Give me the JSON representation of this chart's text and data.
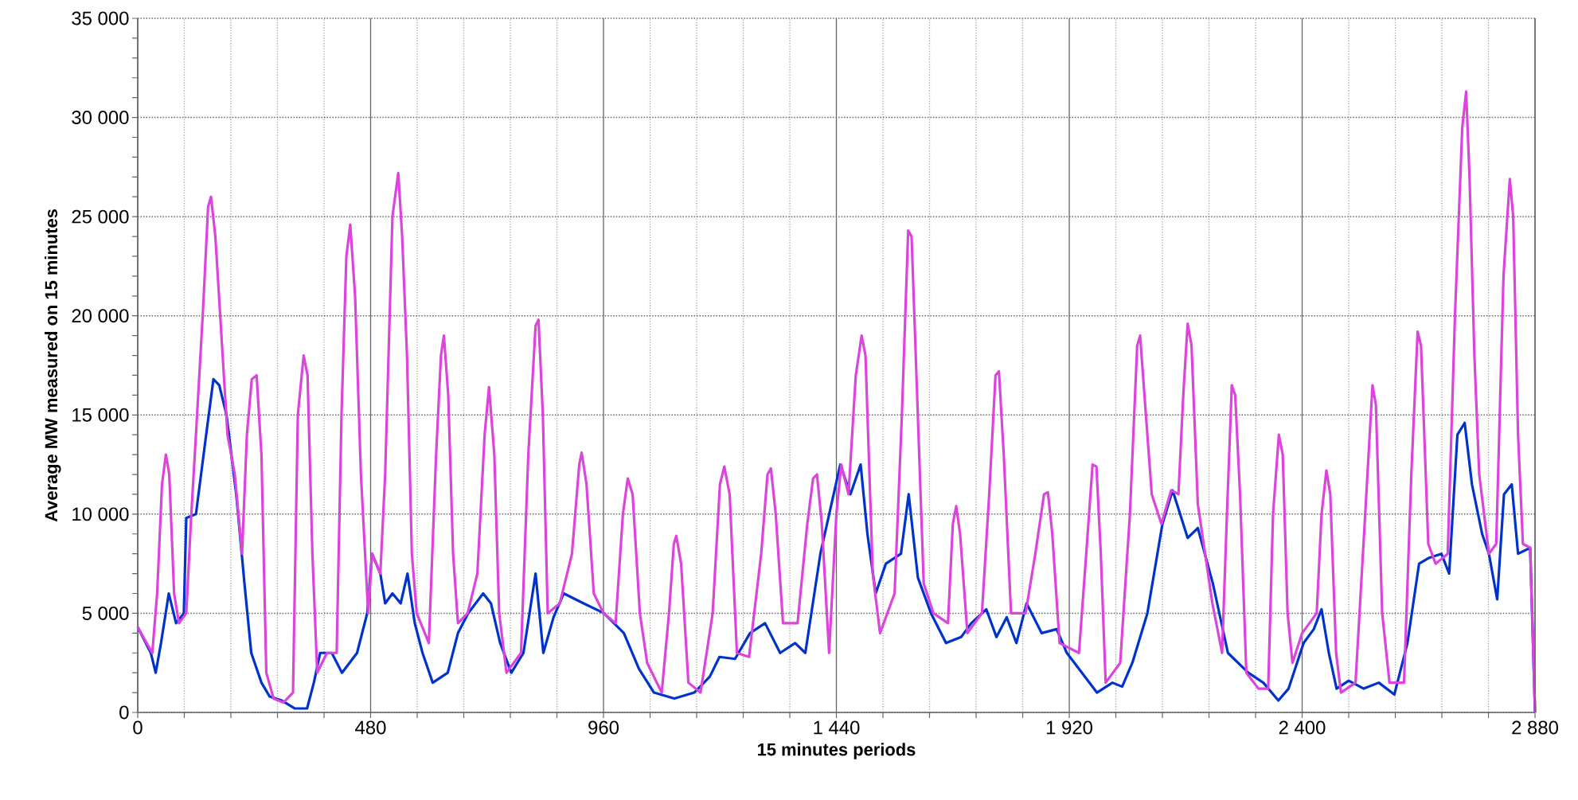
{
  "chart_data": {
    "type": "line",
    "xlabel": "**15 minutes periods**",
    "ylabel": "**Average MW measured on 15 minutes**",
    "grid": true,
    "marker": "none",
    "line_style": "solid",
    "xlim": [
      0,
      2880
    ],
    "ylim": [
      0,
      35000
    ],
    "xticks": [
      0,
      {
        "value": 96,
        "label": null
      },
      {
        "value": 192,
        "label": null
      },
      {
        "value": 288,
        "label": null
      },
      {
        "value": 384,
        "label": null
      },
      480,
      {
        "value": 576,
        "label": null
      },
      {
        "value": 672,
        "label": null
      },
      {
        "value": 768,
        "label": null
      },
      {
        "value": 864,
        "label": null
      },
      960,
      {
        "value": 1056,
        "label": null
      },
      {
        "value": 1152,
        "label": null
      },
      {
        "value": 1248,
        "label": null
      },
      {
        "value": 1344,
        "label": null
      },
      {
        "value": 1440,
        "label": "1 440"
      },
      {
        "value": 1536,
        "label": null
      },
      {
        "value": 1632,
        "label": null
      },
      {
        "value": 1728,
        "label": null
      },
      {
        "value": 1824,
        "label": null
      },
      {
        "value": 1920,
        "label": "1 920"
      },
      {
        "value": 2016,
        "label": null
      },
      {
        "value": 2112,
        "label": null
      },
      {
        "value": 2208,
        "label": null
      },
      {
        "value": 2304,
        "label": null
      },
      {
        "value": 2400,
        "label": "2 400"
      },
      {
        "value": 2496,
        "label": null
      },
      {
        "value": 2592,
        "label": null
      },
      {
        "value": 2688,
        "label": null
      },
      {
        "value": 2784,
        "label": null
      },
      {
        "value": 2880,
        "label": "2 880"
      }
    ],
    "yticks": [
      0,
      {
        "value": 1000,
        "label": null
      },
      {
        "value": 2000,
        "label": null
      },
      {
        "value": 3000,
        "label": null
      },
      {
        "value": 4000,
        "label": null
      },
      {
        "value": 5000,
        "label": "5 000"
      },
      {
        "value": 6000,
        "label": null
      },
      {
        "value": 7000,
        "label": null
      },
      {
        "value": 8000,
        "label": null
      },
      {
        "value": 9000,
        "label": null
      },
      {
        "value": 10000,
        "label": "10 000"
      },
      {
        "value": 11000,
        "label": null
      },
      {
        "value": 12000,
        "label": null
      },
      {
        "value": 13000,
        "label": null
      },
      {
        "value": 14000,
        "label": null
      },
      {
        "value": 15000,
        "label": "15 000"
      },
      {
        "value": 16000,
        "label": null
      },
      {
        "value": 17000,
        "label": null
      },
      {
        "value": 18000,
        "label": null
      },
      {
        "value": 19000,
        "label": null
      },
      {
        "value": 20000,
        "label": "20 000"
      },
      {
        "value": 21000,
        "label": null
      },
      {
        "value": 22000,
        "label": null
      },
      {
        "value": 23000,
        "label": null
      },
      {
        "value": 24000,
        "label": null
      },
      {
        "value": 25000,
        "label": "25 000"
      },
      {
        "value": 26000,
        "label": null
      },
      {
        "value": 27000,
        "label": null
      },
      {
        "value": 28000,
        "label": null
      },
      {
        "value": 29000,
        "label": null
      },
      {
        "value": 30000,
        "label": "30 000"
      },
      {
        "value": 31000,
        "label": null
      },
      {
        "value": 32000,
        "label": null
      },
      {
        "value": 33000,
        "label": null
      },
      {
        "value": 34000,
        "label": null
      },
      {
        "value": 35000,
        "label": "35 000"
      }
    ],
    "series": [
      {
        "color": "#0033cc",
        "x": [
          0,
          27,
          37,
          48,
          64,
          79,
          95,
          100,
          120,
          141,
          156,
          168,
          183,
          203,
          220,
          234,
          255,
          272,
          297,
          324,
          349,
          363,
          376,
          400,
          421,
          452,
          473,
          483,
          500,
          510,
          525,
          542,
          556,
          571,
          587,
          608,
          639,
          660,
          681,
          712,
          728,
          747,
          770,
          795,
          820,
          836,
          857,
          878,
          919,
          961,
          1002,
          1033,
          1064,
          1106,
          1147,
          1179,
          1199,
          1231,
          1262,
          1293,
          1324,
          1355,
          1376,
          1407,
          1448,
          1469,
          1490,
          1504,
          1521,
          1542,
          1573,
          1589,
          1608,
          1635,
          1666,
          1697,
          1718,
          1749,
          1770,
          1791,
          1811,
          1832,
          1863,
          1894,
          1915,
          1946,
          1977,
          2009,
          2029,
          2050,
          2081,
          2112,
          2133,
          2164,
          2185,
          2216,
          2247,
          2289,
          2320,
          2351,
          2372,
          2403,
          2424,
          2440,
          2455,
          2471,
          2496,
          2527,
          2558,
          2590,
          2617,
          2641,
          2662,
          2687,
          2703,
          2720,
          2735,
          2750,
          2771,
          2785,
          2802,
          2816,
          2832,
          2845,
          2870,
          2880
        ],
        "values": [
          4300,
          3000,
          2000,
          3500,
          6000,
          4500,
          5000,
          9800,
          10000,
          14000,
          16800,
          16500,
          15000,
          11000,
          6500,
          3000,
          1500,
          800,
          600,
          200,
          200,
          1500,
          3000,
          3000,
          2000,
          3000,
          5000,
          8000,
          7000,
          5500,
          6000,
          5500,
          7000,
          4500,
          3000,
          1500,
          2000,
          4000,
          5000,
          6000,
          5500,
          3500,
          2000,
          3000,
          7000,
          3000,
          4800,
          6000,
          5500,
          5000,
          4000,
          2200,
          1000,
          700,
          1000,
          1800,
          2800,
          2700,
          4000,
          4500,
          3000,
          3500,
          3000,
          8000,
          12500,
          11000,
          12500,
          9000,
          6000,
          7500,
          8000,
          11000,
          6800,
          5000,
          3500,
          3800,
          4500,
          5200,
          3800,
          4800,
          3500,
          5500,
          4000,
          4200,
          3000,
          2000,
          1000,
          1500,
          1300,
          2500,
          5000,
          9500,
          11200,
          8800,
          9300,
          6500,
          3000,
          2000,
          1500,
          600,
          1200,
          3500,
          4200,
          5200,
          3000,
          1200,
          1600,
          1200,
          1500,
          900,
          3500,
          7500,
          7800,
          8000,
          7000,
          14000,
          14600,
          11500,
          9000,
          8000,
          5700,
          11000,
          11500,
          8000,
          8300,
          0
        ]
      },
      {
        "color": "#dd44dd",
        "x": [
          0,
          30,
          40,
          50,
          58,
          65,
          75,
          85,
          100,
          110,
          120,
          135,
          145,
          151,
          160,
          170,
          185,
          200,
          215,
          225,
          235,
          245,
          255,
          265,
          280,
          300,
          320,
          330,
          342,
          350,
          360,
          370,
          390,
          410,
          420,
          430,
          438,
          448,
          460,
          475,
          483,
          500,
          510,
          525,
          537,
          545,
          555,
          565,
          575,
          600,
          615,
          625,
          631,
          640,
          650,
          660,
          680,
          700,
          715,
          724,
          735,
          745,
          760,
          790,
          805,
          820,
          826,
          835,
          845,
          870,
          895,
          910,
          915,
          925,
          940,
          960,
          985,
          1000,
          1010,
          1020,
          1035,
          1050,
          1080,
          1095,
          1105,
          1110,
          1120,
          1135,
          1160,
          1185,
          1200,
          1209,
          1220,
          1235,
          1260,
          1285,
          1298,
          1305,
          1315,
          1330,
          1360,
          1380,
          1392,
          1400,
          1410,
          1425,
          1440,
          1450,
          1465,
          1480,
          1492,
          1500,
          1515,
          1530,
          1560,
          1575,
          1588,
          1595,
          1605,
          1620,
          1640,
          1670,
          1680,
          1687,
          1695,
          1710,
          1740,
          1755,
          1768,
          1775,
          1785,
          1800,
          1830,
          1850,
          1868,
          1876,
          1885,
          1900,
          1940,
          1955,
          1968,
          1976,
          1985,
          1995,
          2025,
          2045,
          2060,
          2066,
          2075,
          2090,
          2110,
          2130,
          2145,
          2155,
          2164,
          2172,
          2185,
          2200,
          2215,
          2235,
          2245,
          2255,
          2262,
          2272,
          2285,
          2310,
          2330,
          2340,
          2352,
          2360,
          2370,
          2380,
          2400,
          2430,
          2440,
          2450,
          2458,
          2470,
          2480,
          2510,
          2530,
          2545,
          2552,
          2565,
          2580,
          2610,
          2625,
          2638,
          2645,
          2660,
          2675,
          2700,
          2715,
          2730,
          2738,
          2745,
          2755,
          2765,
          2785,
          2800,
          2815,
          2828,
          2835,
          2845,
          2855,
          2870,
          2880
        ],
        "values": [
          4300,
          3000,
          6000,
          11500,
          13000,
          12000,
          6000,
          4500,
          5000,
          9800,
          14000,
          20500,
          25500,
          26000,
          24000,
          20000,
          14000,
          12000,
          8000,
          14000,
          16800,
          17000,
          13000,
          2000,
          700,
          500,
          1000,
          15000,
          18000,
          17000,
          8000,
          2000,
          3000,
          3000,
          15000,
          23000,
          24600,
          21000,
          12000,
          5000,
          8000,
          7000,
          12000,
          25000,
          27200,
          24000,
          18000,
          8000,
          5000,
          3500,
          13000,
          18000,
          19000,
          16000,
          8000,
          4500,
          5000,
          7000,
          14000,
          16400,
          13000,
          5000,
          2000,
          3000,
          13000,
          19500,
          19800,
          15000,
          5000,
          5500,
          8000,
          12500,
          13100,
          11500,
          6000,
          5000,
          4500,
          10000,
          11800,
          11000,
          5000,
          2500,
          1000,
          5000,
          8500,
          8900,
          7500,
          1500,
          1000,
          5000,
          11500,
          12400,
          11000,
          3000,
          2800,
          8000,
          12000,
          12300,
          10000,
          4500,
          4500,
          9500,
          11800,
          12000,
          9500,
          3000,
          10000,
          12500,
          11000,
          17000,
          19000,
          18000,
          7000,
          4000,
          6000,
          15000,
          24300,
          24000,
          17000,
          6500,
          5000,
          4500,
          9500,
          10400,
          9000,
          4000,
          5000,
          11000,
          17000,
          17200,
          13000,
          5000,
          5000,
          8000,
          11000,
          11100,
          9000,
          3500,
          3000,
          8000,
          12500,
          12400,
          8000,
          1500,
          2500,
          10000,
          18500,
          19000,
          16000,
          11000,
          9500,
          11200,
          11000,
          16000,
          19600,
          18500,
          10500,
          8000,
          5500,
          3000,
          10000,
          16500,
          16000,
          11000,
          2000,
          1200,
          1200,
          10000,
          14000,
          13000,
          5000,
          2500,
          4000,
          5000,
          10000,
          12200,
          11000,
          3000,
          1000,
          1500,
          10000,
          16500,
          15500,
          5000,
          1500,
          1500,
          12000,
          19200,
          18500,
          8500,
          7500,
          8000,
          20000,
          29500,
          31300,
          27000,
          18000,
          12000,
          8000,
          8500,
          22000,
          26900,
          25000,
          14000,
          8500,
          8300,
          0
        ]
      }
    ]
  }
}
